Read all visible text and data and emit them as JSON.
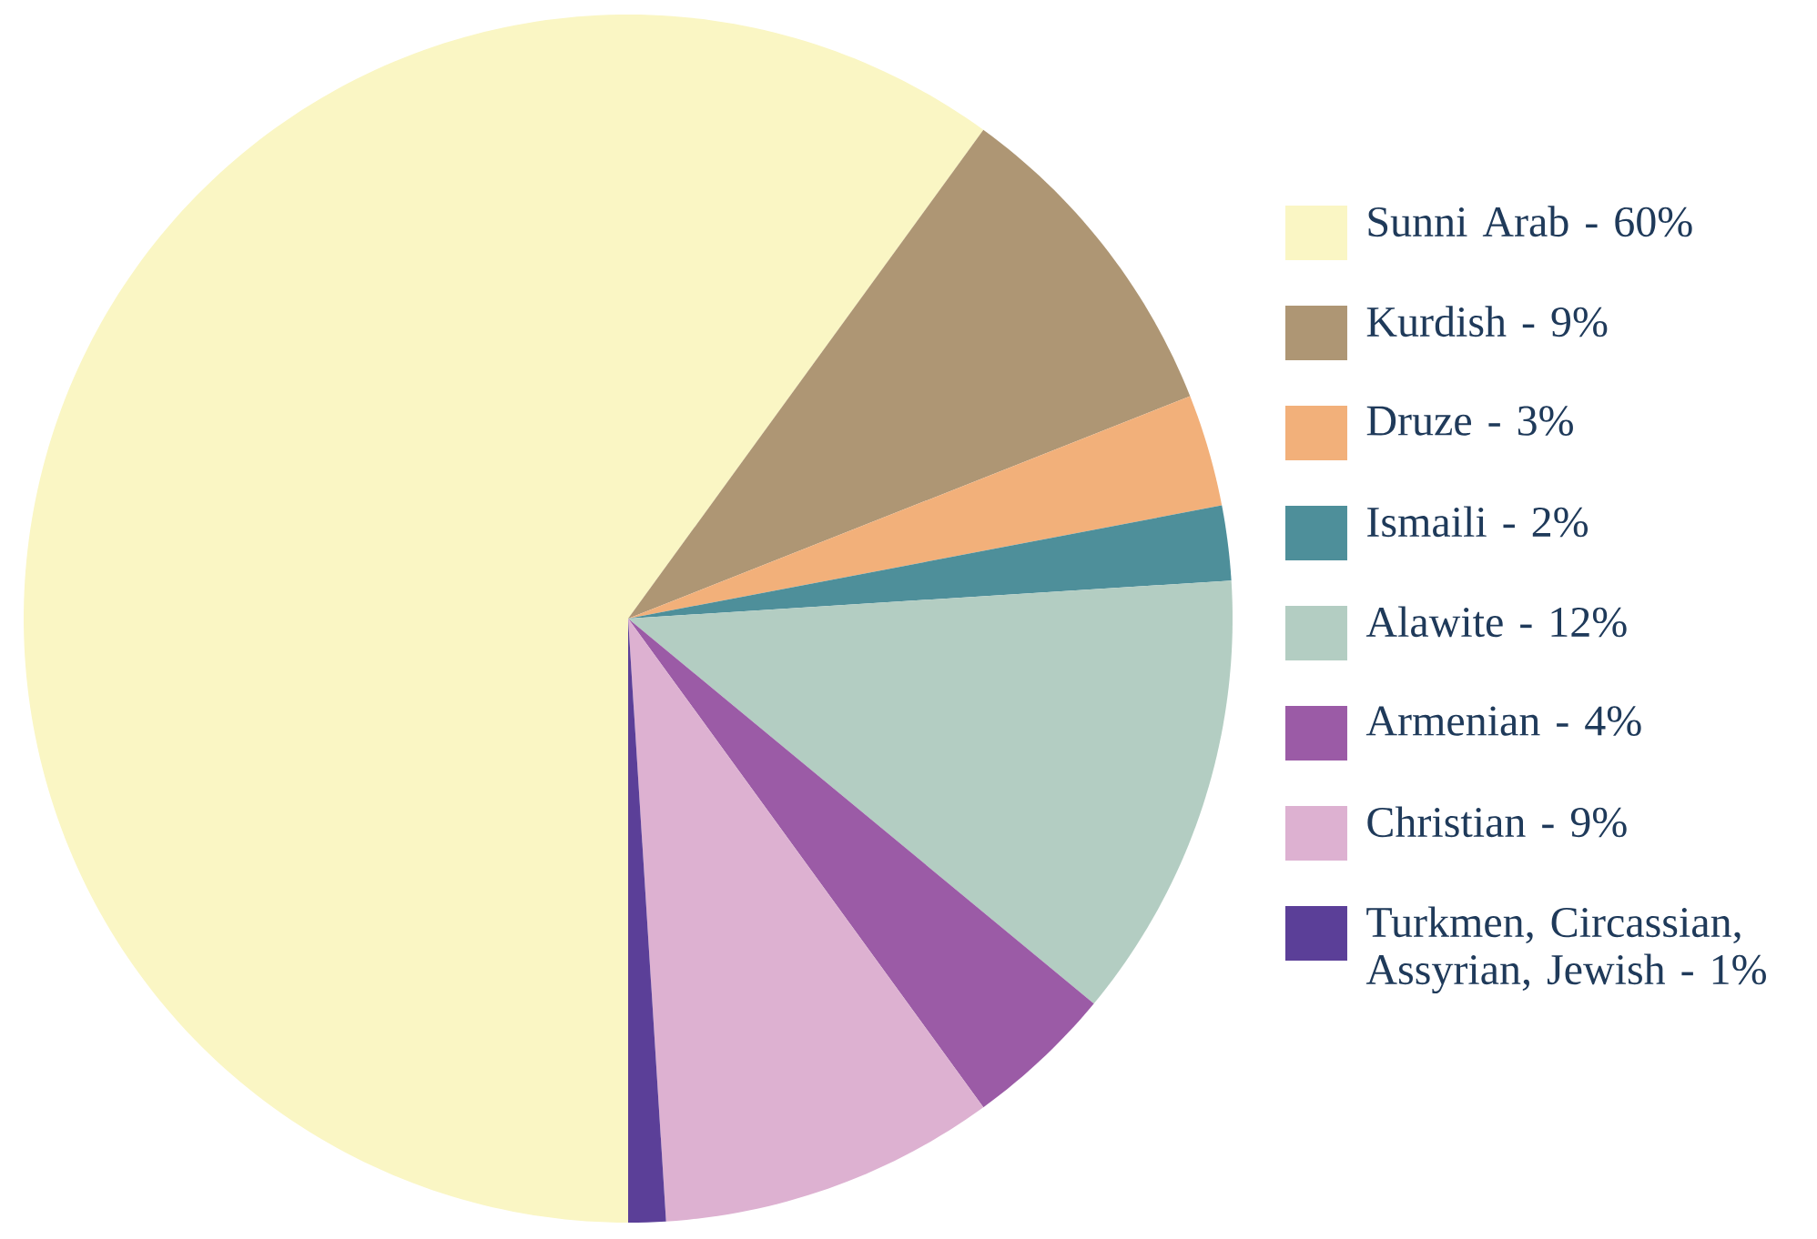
{
  "chart_data": {
    "type": "pie",
    "categories": [
      "Sunni Arab - 60%",
      "Kurdish - 9%",
      "Druze - 3%",
      "Ismaili - 2%",
      "Alawite - 12%",
      "Armenian - 4%",
      "Christian - 9%",
      "Turkmen, Circassian, Assyrian, Jewish - 1%"
    ],
    "values": [
      60,
      9,
      3,
      2,
      12,
      4,
      9,
      1
    ],
    "colors": [
      "#faf6c4",
      "#ae9674",
      "#f2b07a",
      "#4e8f9a",
      "#b3cdc2",
      "#9b5ba6",
      "#ddb1d1",
      "#5b3f98"
    ],
    "legend": "right"
  }
}
